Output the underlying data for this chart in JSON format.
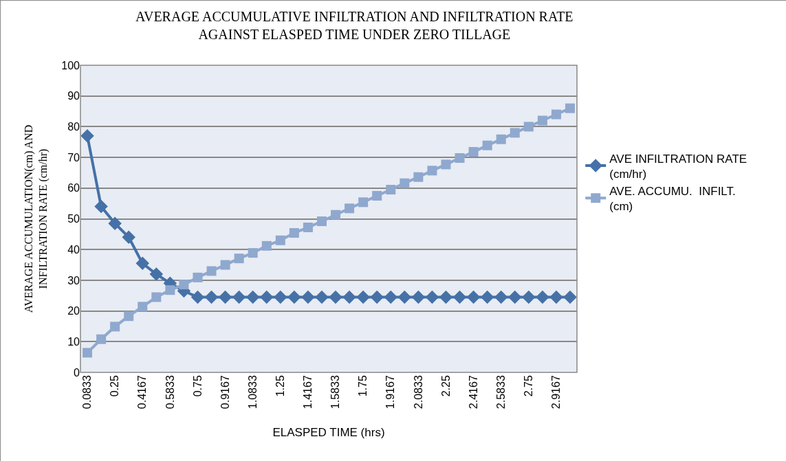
{
  "chart_data": {
    "type": "line",
    "title": "AVERAGE ACCUMULATIVE INFILTRATION AND INFILTRATION RATE AGAINST ELASPED TIME UNDER ZERO TILLAGE",
    "xlabel": "ELASPED TIME (hrs)",
    "ylabel": "AVERAGE ACCUMULATION(cm) AND INFILTRATION RATE (cm/hr)",
    "categories": [
      "0.0833",
      null,
      "0.25",
      null,
      "0.4167",
      null,
      "0.5833",
      null,
      "0.75",
      null,
      "0.9167",
      null,
      "1.0833",
      null,
      "1.25",
      null,
      "1.4167",
      null,
      "1.5833",
      null,
      "1.75",
      null,
      "1.9167",
      null,
      "2.0833",
      null,
      "2.25",
      null,
      "2.4167",
      null,
      "2.5833",
      null,
      "2.75",
      null,
      "2.9167",
      null
    ],
    "series": [
      {
        "name": "AVE INFILTRATION RATE (cm/hr)",
        "color": "#4571a7",
        "marker": "diamond",
        "values": [
          77,
          54,
          48.5,
          44,
          35.5,
          32,
          29,
          26.5,
          24.5,
          24.5,
          24.5,
          24.5,
          24.5,
          24.5,
          24.5,
          24.5,
          24.5,
          24.5,
          24.5,
          24.5,
          24.5,
          24.5,
          24.5,
          24.5,
          24.5,
          24.5,
          24.5,
          24.5,
          24.5,
          24.5,
          24.5,
          24.5,
          24.5,
          24.5,
          24.5,
          24.5
        ]
      },
      {
        "name": "AVE. ACCUMU.  INFILT. (cm)",
        "color": "#8fa8ce",
        "marker": "square",
        "values": [
          6.4,
          10.8,
          14.9,
          18.3,
          21.4,
          24.5,
          26.8,
          28.6,
          30.9,
          33,
          35,
          37.1,
          38.9,
          41.2,
          43,
          45.4,
          47.2,
          49.2,
          51.3,
          53.4,
          55.4,
          57.5,
          59.5,
          61.6,
          63.6,
          65.7,
          67.7,
          69.8,
          71.8,
          73.9,
          75.9,
          78,
          80,
          82,
          84,
          86
        ]
      }
    ],
    "ylim": [
      0,
      100
    ],
    "yticks": [
      0,
      10,
      20,
      30,
      40,
      50,
      60,
      70,
      80,
      90,
      100
    ],
    "grid": "y",
    "legend": "right"
  }
}
